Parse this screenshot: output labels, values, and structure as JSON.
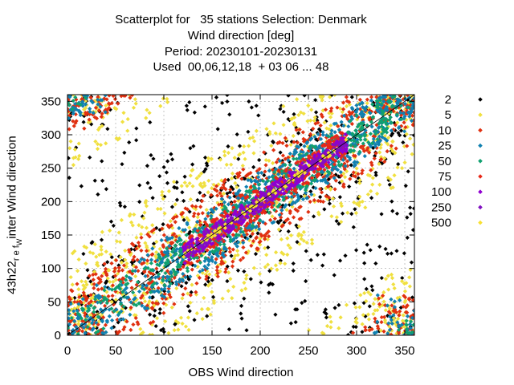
{
  "chart_data": {
    "type": "scatter",
    "title_lines": [
      "Scatterplot for   35 stations Selection: Denmark",
      "Wind direction [deg]",
      "Period: 20230101-20230131",
      "Used  00,06,12,18  + 03 06 ... 48"
    ],
    "xlabel": "OBS Wind direction",
    "ylabel_prefix": "43h22",
    "ylabel_sub": "r e f",
    "ylabel_subsub": "W",
    "ylabel_suffix": "inter Wind direction",
    "xlim": [
      0,
      360
    ],
    "ylim": [
      0,
      360
    ],
    "xticks": [
      0,
      50,
      100,
      150,
      200,
      250,
      300,
      350
    ],
    "yticks": [
      0,
      50,
      100,
      150,
      200,
      250,
      300,
      350
    ],
    "grid": true,
    "diagonal": true,
    "legend_position": "right",
    "density_classes": [
      {
        "label": "2",
        "color": "#000000",
        "band": 360
      },
      {
        "label": "5",
        "color": "#f0e040",
        "band": 120
      },
      {
        "label": "10",
        "color": "#e03010",
        "band": 70
      },
      {
        "label": "25",
        "color": "#1080b0",
        "band": 45
      },
      {
        "label": "50",
        "color": "#10a070",
        "band": 30
      },
      {
        "label": "75",
        "color": "#e82818",
        "band": 22
      },
      {
        "label": "100",
        "color": "#9000d0",
        "band": 14
      },
      {
        "label": "250",
        "color": "#8010c0",
        "band": 7
      },
      {
        "label": "500",
        "color": "#f8e030",
        "band": 4
      }
    ]
  }
}
